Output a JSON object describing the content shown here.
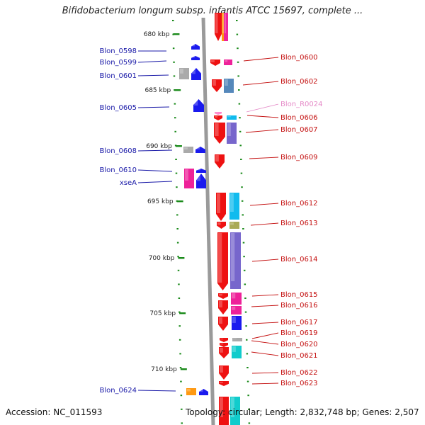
{
  "title": "Bifidobacterium longum subsp. infantis ATCC 15697, complete ...",
  "footer": {
    "accession": "Accession: NC_011593",
    "topology": "Topology: circular; Length: 2,832,748 bp; Genes: 2,507"
  },
  "colors": {
    "backbone": "#9a9a9a",
    "tick": "#1a8a1a",
    "left_label": "#1a1aa8",
    "right_label": "#c41010",
    "rna_label": "#e58bc8"
  },
  "scale_labels": [
    "680 kbp",
    "685 kbp",
    "690 kbp",
    "695 kbp",
    "700 kbp",
    "705 kbp",
    "710 kbp"
  ],
  "left_labels": [
    "Blon_0598",
    "Blon_0599",
    "Blon_0601",
    "Blon_0605",
    "Blon_0608",
    "Blon_0610",
    "xseA",
    "Blon_0624"
  ],
  "right_labels": [
    "Blon_0600",
    "Blon_0602",
    "Blon_R0024",
    "Blon_0606",
    "Blon_0607",
    "Blon_0609",
    "Blon_0612",
    "Blon_0613",
    "Blon_0614",
    "Blon_0615",
    "Blon_0616",
    "Blon_0617",
    "Blon_0619",
    "Blon_0620",
    "Blon_0621",
    "Blon_0622",
    "Blon_0623"
  ]
}
